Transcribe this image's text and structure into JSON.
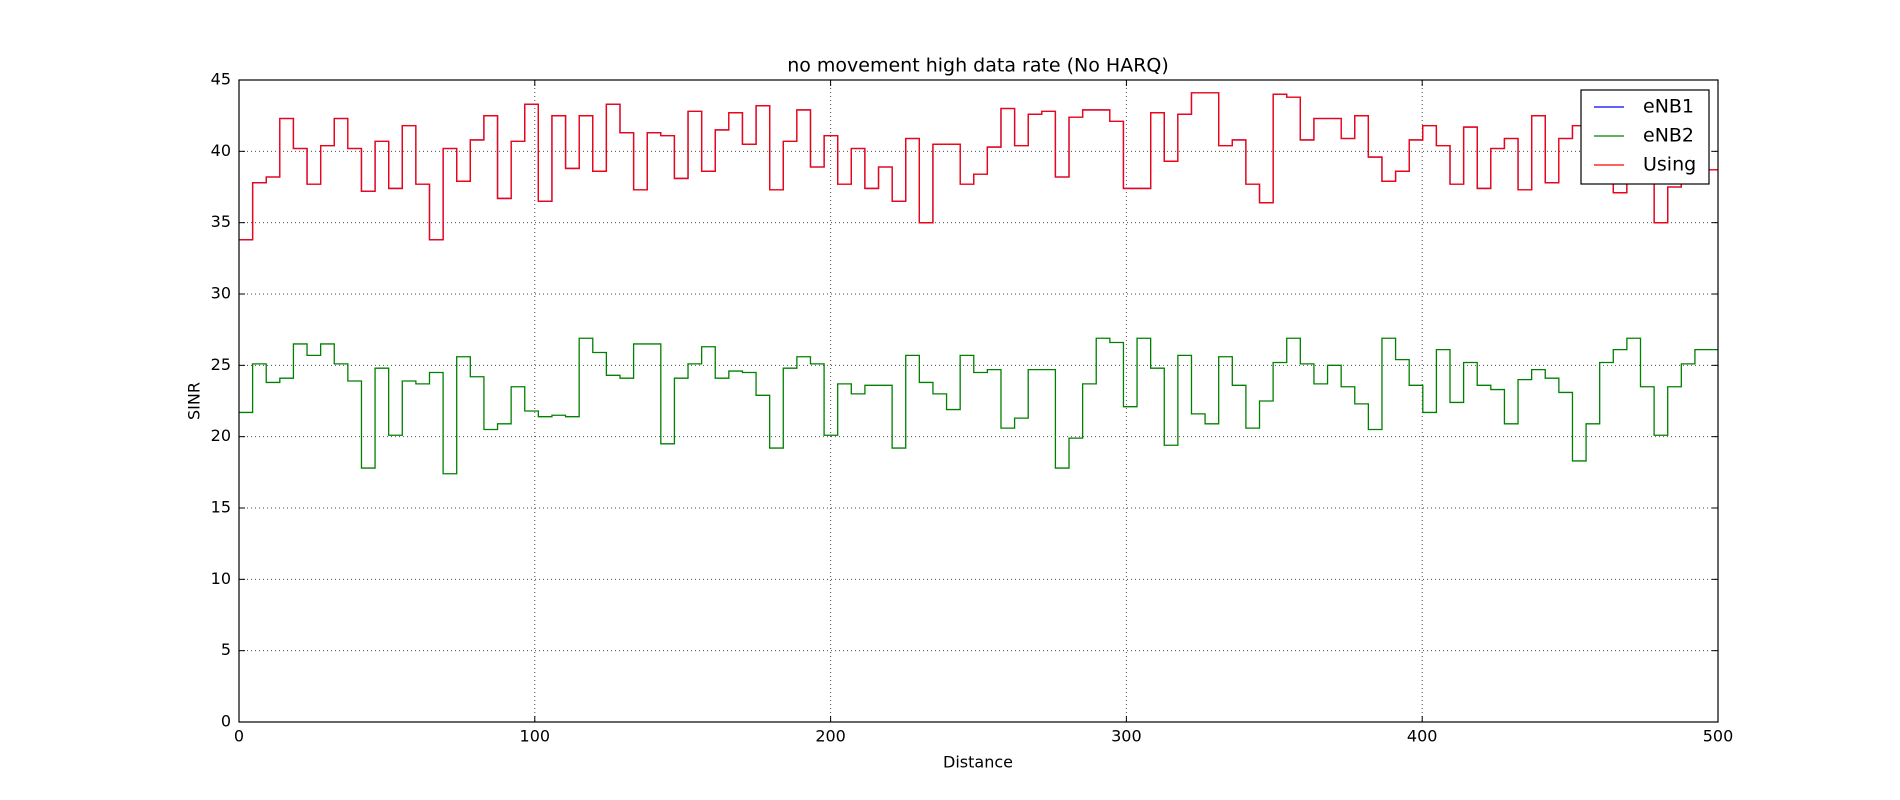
{
  "chart_data": {
    "type": "line",
    "drawstyle": "steps-post",
    "title": "no movement high data rate (No HARQ)",
    "x_label": "Distance",
    "y_label": "SINR",
    "xlim": [
      0,
      500
    ],
    "xticks": [
      0,
      100,
      200,
      300,
      400,
      500
    ],
    "ylim": [
      0,
      45
    ],
    "yticks": [
      0,
      5,
      10,
      15,
      20,
      25,
      30,
      35,
      40,
      45
    ],
    "grid": true,
    "legend": "upper right",
    "x": [
      0,
      4.6,
      9.2,
      13.8,
      18.4,
      23,
      27.6,
      32.2,
      36.8,
      41.4,
      46,
      50.6,
      55.2,
      59.8,
      64.4,
      69,
      73.6,
      78.2,
      82.8,
      87.4,
      92,
      96.6,
      101.2,
      105.8,
      110.4,
      115,
      119.6,
      124.2,
      128.8,
      133.4,
      138,
      142.6,
      147.2,
      151.8,
      156.4,
      161,
      165.6,
      170.2,
      174.8,
      179.4,
      184,
      188.6,
      193.2,
      197.8,
      202.4,
      207,
      211.6,
      216.2,
      220.8,
      225.4,
      230,
      234.6,
      239.2,
      243.8,
      248.4,
      253,
      257.6,
      262.2,
      266.8,
      271.4,
      276,
      280.6,
      285.2,
      289.8,
      294.4,
      299,
      303.6,
      308.2,
      312.8,
      317.4,
      322,
      326.6,
      331.2,
      335.8,
      340.4,
      345,
      349.6,
      354.2,
      358.8,
      363.4,
      368,
      372.6,
      377.2,
      381.8,
      386.4,
      391,
      395.6,
      400.2,
      404.8,
      409.4,
      414,
      418.6,
      423.2,
      427.8,
      432.4,
      437,
      441.6,
      446.2,
      450.8,
      455.4,
      460,
      464.6,
      469.2,
      473.8,
      478.4,
      483,
      487.6,
      492.2
    ],
    "series": [
      {
        "name": "eNB1",
        "color": "#0000ff",
        "values": [
          33.8,
          37.8,
          38.2,
          42.3,
          40.2,
          37.7,
          40.4,
          42.3,
          40.2,
          37.2,
          40.7,
          37.4,
          41.8,
          37.7,
          33.8,
          40.2,
          37.9,
          40.8,
          42.5,
          36.7,
          40.7,
          43.3,
          36.5,
          42.5,
          38.8,
          42.5,
          38.6,
          43.3,
          41.3,
          37.3,
          41.3,
          41.1,
          38.1,
          42.8,
          38.6,
          41.5,
          42.7,
          40.5,
          43.2,
          37.3,
          40.7,
          42.9,
          38.9,
          41.1,
          37.7,
          40.2,
          37.4,
          38.9,
          36.5,
          40.9,
          35.0,
          40.5,
          40.5,
          37.7,
          38.4,
          40.3,
          43.0,
          40.4,
          42.6,
          42.8,
          38.2,
          42.4,
          42.9,
          42.9,
          42.1,
          37.4,
          37.4,
          42.7,
          39.3,
          42.6,
          44.1,
          44.1,
          40.4,
          40.8,
          37.7,
          36.4,
          44.0,
          43.8,
          40.8,
          42.3,
          42.3,
          40.9,
          42.5,
          39.6,
          37.9,
          38.6,
          40.8,
          41.8,
          40.4,
          37.7,
          41.7,
          37.4,
          40.2,
          40.9,
          37.3,
          42.5,
          37.8,
          40.9,
          41.8,
          39.7,
          40.9,
          37.1,
          40.2,
          40.2,
          35.0,
          37.5,
          38.0,
          38.7
        ]
      },
      {
        "name": "eNB2",
        "color": "#008000",
        "values": [
          21.7,
          25.1,
          23.8,
          24.1,
          26.5,
          25.7,
          26.5,
          25.1,
          23.9,
          17.8,
          24.8,
          20.1,
          23.9,
          23.7,
          24.5,
          17.4,
          25.6,
          24.2,
          20.5,
          20.9,
          23.5,
          21.8,
          21.4,
          21.5,
          21.4,
          26.9,
          25.9,
          24.3,
          24.1,
          26.5,
          26.5,
          19.5,
          24.1,
          25.1,
          26.3,
          24.1,
          24.6,
          24.5,
          22.9,
          19.2,
          24.8,
          25.6,
          25.1,
          20.1,
          23.7,
          23.0,
          23.6,
          23.6,
          19.2,
          25.7,
          23.8,
          23.0,
          21.9,
          25.7,
          24.5,
          24.7,
          20.6,
          21.3,
          24.7,
          24.7,
          17.8,
          19.9,
          23.7,
          26.9,
          26.6,
          22.1,
          26.9,
          24.8,
          19.4,
          25.7,
          21.6,
          20.9,
          25.6,
          23.6,
          20.6,
          22.5,
          25.2,
          26.9,
          25.1,
          23.7,
          25.0,
          23.5,
          22.3,
          20.5,
          26.9,
          25.4,
          23.6,
          21.7,
          26.1,
          22.4,
          25.2,
          23.6,
          23.3,
          20.9,
          24.0,
          24.7,
          24.1,
          23.1,
          18.3,
          20.9,
          25.2,
          26.1,
          26.9,
          23.5,
          20.1,
          23.5,
          25.1,
          26.1
        ]
      },
      {
        "name": "Using",
        "color": "#ff0000",
        "values": [
          33.8,
          37.8,
          38.2,
          42.3,
          40.2,
          37.7,
          40.4,
          42.3,
          40.2,
          37.2,
          40.7,
          37.4,
          41.8,
          37.7,
          33.8,
          40.2,
          37.9,
          40.8,
          42.5,
          36.7,
          40.7,
          43.3,
          36.5,
          42.5,
          38.8,
          42.5,
          38.6,
          43.3,
          41.3,
          37.3,
          41.3,
          41.1,
          38.1,
          42.8,
          38.6,
          41.5,
          42.7,
          40.5,
          43.2,
          37.3,
          40.7,
          42.9,
          38.9,
          41.1,
          37.7,
          40.2,
          37.4,
          38.9,
          36.5,
          40.9,
          35.0,
          40.5,
          40.5,
          37.7,
          38.4,
          40.3,
          43.0,
          40.4,
          42.6,
          42.8,
          38.2,
          42.4,
          42.9,
          42.9,
          42.1,
          37.4,
          37.4,
          42.7,
          39.3,
          42.6,
          44.1,
          44.1,
          40.4,
          40.8,
          37.7,
          36.4,
          44.0,
          43.8,
          40.8,
          42.3,
          42.3,
          40.9,
          42.5,
          39.6,
          37.9,
          38.6,
          40.8,
          41.8,
          40.4,
          37.7,
          41.7,
          37.4,
          40.2,
          40.9,
          37.3,
          42.5,
          37.8,
          40.9,
          41.8,
          39.7,
          40.9,
          37.1,
          40.2,
          40.2,
          35.0,
          37.5,
          38.0,
          38.7
        ]
      }
    ]
  }
}
